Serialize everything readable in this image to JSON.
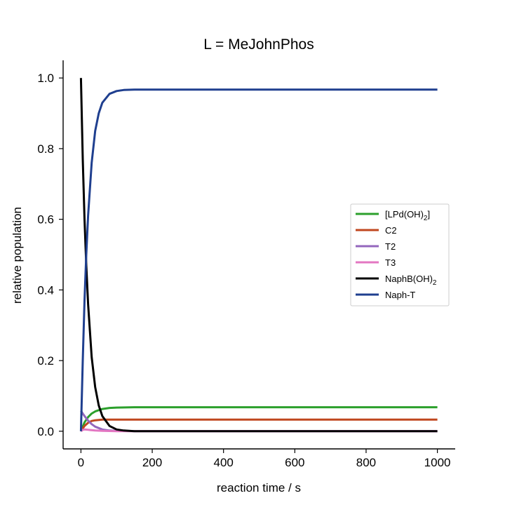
{
  "chart_data": {
    "type": "line",
    "title": "L = MeJohnPhos",
    "xlabel": "reaction time / s",
    "ylabel": "relative population",
    "xlim": [
      -50,
      1050
    ],
    "ylim": [
      -0.05,
      1.05
    ],
    "xticks": [
      0,
      200,
      400,
      600,
      800,
      1000
    ],
    "xtick_labels": [
      "0",
      "200",
      "400",
      "600",
      "800",
      "1000"
    ],
    "yticks": [
      0.0,
      0.2,
      0.4,
      0.6,
      0.8,
      1.0
    ],
    "ytick_labels": [
      "0.0",
      "0.2",
      "0.4",
      "0.6",
      "0.8",
      "1.0"
    ],
    "grid": false,
    "legend_position": "center-right",
    "series": [
      {
        "name": "[LPd(OH)2]",
        "label_main": "[LPd(OH)",
        "label_sub": "2",
        "label_tail": "]",
        "color": "#2ca02c",
        "x": [
          0,
          10,
          20,
          30,
          40,
          60,
          80,
          100,
          150,
          200,
          1000
        ],
        "y": [
          0.0,
          0.025,
          0.04,
          0.05,
          0.056,
          0.063,
          0.066,
          0.067,
          0.068,
          0.068,
          0.068
        ]
      },
      {
        "name": "C2",
        "label_main": "C2",
        "label_sub": "",
        "label_tail": "",
        "color": "#c0471f",
        "x": [
          0,
          10,
          20,
          30,
          40,
          60,
          80,
          100,
          150,
          1000
        ],
        "y": [
          0.0,
          0.015,
          0.024,
          0.029,
          0.031,
          0.033,
          0.033,
          0.033,
          0.033,
          0.033
        ]
      },
      {
        "name": "T2",
        "label_main": "T2",
        "label_sub": "",
        "label_tail": "",
        "color": "#9467bd",
        "x": [
          0,
          5,
          10,
          20,
          30,
          40,
          60,
          80,
          100,
          150,
          1000
        ],
        "y": [
          0.058,
          0.05,
          0.043,
          0.03,
          0.02,
          0.013,
          0.005,
          0.002,
          0.001,
          0.0,
          0.0
        ]
      },
      {
        "name": "T3",
        "label_main": "T3",
        "label_sub": "",
        "label_tail": "",
        "color": "#e377c2",
        "x": [
          0,
          5,
          10,
          20,
          40,
          60,
          100,
          1000
        ],
        "y": [
          0.0,
          0.004,
          0.005,
          0.004,
          0.002,
          0.001,
          0.0,
          0.0
        ]
      },
      {
        "name": "NaphB(OH)2",
        "label_main": "NaphB(OH)",
        "label_sub": "2",
        "label_tail": "",
        "color": "#000000",
        "x": [
          0,
          5,
          10,
          15,
          20,
          30,
          40,
          50,
          60,
          80,
          100,
          120,
          150,
          200,
          1000
        ],
        "y": [
          1.0,
          0.77,
          0.6,
          0.47,
          0.36,
          0.21,
          0.125,
          0.073,
          0.043,
          0.015,
          0.005,
          0.002,
          0.0,
          0.0,
          0.0
        ]
      },
      {
        "name": "Naph-T",
        "label_main": "Naph-T",
        "label_sub": "",
        "label_tail": "",
        "color": "#1f3f8f",
        "x": [
          0,
          5,
          10,
          15,
          20,
          30,
          40,
          50,
          60,
          80,
          100,
          120,
          150,
          200,
          1000
        ],
        "y": [
          0.0,
          0.2,
          0.37,
          0.5,
          0.61,
          0.76,
          0.85,
          0.9,
          0.93,
          0.955,
          0.963,
          0.966,
          0.967,
          0.967,
          0.967
        ]
      }
    ]
  }
}
